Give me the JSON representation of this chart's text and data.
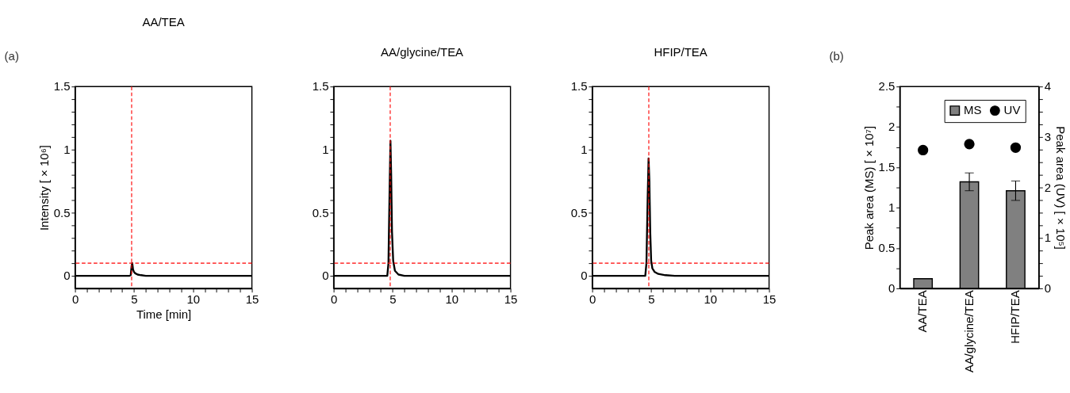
{
  "chart_data": [
    {
      "type": "line",
      "title": "AA/TEA",
      "xlabel": "Time [min]",
      "ylabel": "Intensity [ × 10⁶]",
      "annotations": [
        "(a)"
      ],
      "series": [
        {
          "color": "#000000",
          "x": [
            0,
            4.6,
            4.72,
            4.8,
            4.85,
            4.92,
            5.0,
            5.1,
            5.3,
            5.6,
            6.0,
            15
          ],
          "values": [
            0,
            0,
            0.005,
            0.08,
            0.1,
            0.05,
            0.03,
            0.02,
            0.01,
            0.005,
            0,
            0
          ]
        }
      ],
      "xlim": [
        0,
        15
      ],
      "xticks": [
        0,
        {
          "value": 1,
          "label": null
        },
        {
          "value": 2,
          "label": null
        },
        {
          "value": 3,
          "label": null
        },
        {
          "value": 4,
          "label": null
        },
        5,
        {
          "value": 6,
          "label": null
        },
        {
          "value": 7,
          "label": null
        },
        {
          "value": 8,
          "label": null
        },
        {
          "value": 9,
          "label": null
        },
        10,
        {
          "value": 11,
          "label": null
        },
        {
          "value": 12,
          "label": null
        },
        {
          "value": 13,
          "label": null
        },
        {
          "value": 14,
          "label": null
        },
        15
      ],
      "ylim": [
        -0.1,
        1.5
      ],
      "yticks": [
        0,
        {
          "value": 0.1,
          "label": null
        },
        {
          "value": 0.2,
          "label": null
        },
        {
          "value": 0.3,
          "label": null
        },
        {
          "value": 0.4,
          "label": null
        },
        0.5,
        {
          "value": 0.6,
          "label": null
        },
        {
          "value": 0.7,
          "label": null
        },
        {
          "value": 0.8,
          "label": null
        },
        {
          "value": 0.9,
          "label": null
        },
        1,
        {
          "value": 1.1,
          "label": null
        },
        {
          "value": 1.2,
          "label": null
        },
        {
          "value": 1.3,
          "label": null
        },
        {
          "value": 1.4,
          "label": null
        },
        1.5
      ],
      "ref_lines": [
        {
          "axis": "x",
          "value": 4.8,
          "color": "#ff0000",
          "line_style": "dashed"
        },
        {
          "axis": "y",
          "value": 0.1,
          "color": "#ff0000",
          "line_style": "dashed"
        }
      ],
      "grid": false,
      "legend": false,
      "line_style": "solid",
      "marker": "none"
    },
    {
      "type": "line",
      "title": "AA/glycine/TEA",
      "series": [
        {
          "color": "#000000",
          "x": [
            0,
            4.55,
            4.65,
            4.75,
            4.82,
            4.88,
            4.95,
            5.05,
            5.2,
            5.5,
            6,
            15
          ],
          "values": [
            0,
            0,
            0.1,
            0.7,
            1.07,
            0.8,
            0.35,
            0.12,
            0.04,
            0.01,
            0,
            0
          ]
        }
      ],
      "xlim": [
        0,
        15
      ],
      "xticks": [
        0,
        {
          "value": 1,
          "label": null
        },
        {
          "value": 2,
          "label": null
        },
        {
          "value": 3,
          "label": null
        },
        {
          "value": 4,
          "label": null
        },
        5,
        {
          "value": 6,
          "label": null
        },
        {
          "value": 7,
          "label": null
        },
        {
          "value": 8,
          "label": null
        },
        {
          "value": 9,
          "label": null
        },
        10,
        {
          "value": 11,
          "label": null
        },
        {
          "value": 12,
          "label": null
        },
        {
          "value": 13,
          "label": null
        },
        {
          "value": 14,
          "label": null
        },
        15
      ],
      "ylim": [
        -0.1,
        1.5
      ],
      "yticks": [
        0,
        {
          "value": 0.1,
          "label": null
        },
        {
          "value": 0.2,
          "label": null
        },
        {
          "value": 0.3,
          "label": null
        },
        {
          "value": 0.4,
          "label": null
        },
        0.5,
        {
          "value": 0.6,
          "label": null
        },
        {
          "value": 0.7,
          "label": null
        },
        {
          "value": 0.8,
          "label": null
        },
        {
          "value": 0.9,
          "label": null
        },
        1,
        {
          "value": 1.1,
          "label": null
        },
        {
          "value": 1.2,
          "label": null
        },
        {
          "value": 1.3,
          "label": null
        },
        {
          "value": 1.4,
          "label": null
        },
        1.5
      ],
      "ref_lines": [
        {
          "axis": "x",
          "value": 4.8,
          "color": "#ff0000",
          "line_style": "dashed"
        },
        {
          "axis": "y",
          "value": 0.1,
          "color": "#ff0000",
          "line_style": "dashed"
        }
      ],
      "grid": false,
      "legend": false,
      "line_style": "solid",
      "marker": "none"
    },
    {
      "type": "line",
      "title": "HFIP/TEA",
      "series": [
        {
          "color": "#000000",
          "x": [
            0,
            4.5,
            4.6,
            4.7,
            4.78,
            4.85,
            4.92,
            5.0,
            5.1,
            5.3,
            5.6,
            6.2,
            7,
            15
          ],
          "values": [
            0,
            0,
            0.1,
            0.6,
            0.93,
            0.75,
            0.35,
            0.12,
            0.06,
            0.03,
            0.015,
            0.005,
            0,
            0
          ]
        }
      ],
      "xlim": [
        0,
        15
      ],
      "xticks": [
        0,
        {
          "value": 1,
          "label": null
        },
        {
          "value": 2,
          "label": null
        },
        {
          "value": 3,
          "label": null
        },
        {
          "value": 4,
          "label": null
        },
        5,
        {
          "value": 6,
          "label": null
        },
        {
          "value": 7,
          "label": null
        },
        {
          "value": 8,
          "label": null
        },
        {
          "value": 9,
          "label": null
        },
        10,
        {
          "value": 11,
          "label": null
        },
        {
          "value": 12,
          "label": null
        },
        {
          "value": 13,
          "label": null
        },
        {
          "value": 14,
          "label": null
        },
        15
      ],
      "ylim": [
        -0.1,
        1.5
      ],
      "yticks": [
        0,
        {
          "value": 0.1,
          "label": null
        },
        {
          "value": 0.2,
          "label": null
        },
        {
          "value": 0.3,
          "label": null
        },
        {
          "value": 0.4,
          "label": null
        },
        0.5,
        {
          "value": 0.6,
          "label": null
        },
        {
          "value": 0.7,
          "label": null
        },
        {
          "value": 0.8,
          "label": null
        },
        {
          "value": 0.9,
          "label": null
        },
        1,
        {
          "value": 1.1,
          "label": null
        },
        {
          "value": 1.2,
          "label": null
        },
        {
          "value": 1.3,
          "label": null
        },
        {
          "value": 1.4,
          "label": null
        },
        1.5
      ],
      "ref_lines": [
        {
          "axis": "x",
          "value": 4.8,
          "color": "#ff0000",
          "line_style": "dashed"
        },
        {
          "axis": "y",
          "value": 0.1,
          "color": "#ff0000",
          "line_style": "dashed"
        }
      ],
      "grid": false,
      "legend": false,
      "line_style": "solid",
      "marker": "none"
    },
    {
      "type": "bar",
      "ylabel": "Peak area (MS) [ × 10⁷]",
      "y2label": "Peak area (UV) [ × 10⁵]",
      "annotations": [
        "(b)"
      ],
      "categories": [
        "AA/TEA",
        "AA/glycine/TEA",
        "HFIP/TEA"
      ],
      "series": [
        {
          "name": "MS",
          "type": "bar",
          "color": "#808080",
          "values": [
            0.12,
            1.32,
            1.21
          ],
          "errors": [
            null,
            0.11,
            0.12
          ]
        },
        {
          "name": "UV",
          "type": "scatter",
          "axis": "y2",
          "color": "#000000",
          "values": [
            2.74,
            2.86,
            2.79
          ]
        }
      ],
      "ylim": [
        0,
        2.5
      ],
      "yticks": [
        0,
        {
          "value": 0.25,
          "label": null
        },
        0.5,
        {
          "value": 0.75,
          "label": null
        },
        1,
        {
          "value": 1.25,
          "label": null
        },
        1.5,
        {
          "value": 1.75,
          "label": null
        },
        2,
        {
          "value": 2.25,
          "label": null
        },
        2.5
      ],
      "y2lim": [
        0,
        4
      ],
      "y2ticks": [
        0,
        {
          "value": 0.25,
          "label": null
        },
        {
          "value": 0.5,
          "label": null
        },
        {
          "value": 0.75,
          "label": null
        },
        1,
        {
          "value": 1.25,
          "label": null
        },
        {
          "value": 1.5,
          "label": null
        },
        {
          "value": 1.75,
          "label": null
        },
        2,
        {
          "value": 2.25,
          "label": null
        },
        {
          "value": 2.5,
          "label": null
        },
        {
          "value": 2.75,
          "label": null
        },
        3,
        {
          "value": 3.25,
          "label": null
        },
        {
          "value": 3.5,
          "label": null
        },
        {
          "value": 3.75,
          "label": null
        },
        4
      ],
      "grid": false,
      "legend": "top right",
      "marker": "circle"
    }
  ]
}
